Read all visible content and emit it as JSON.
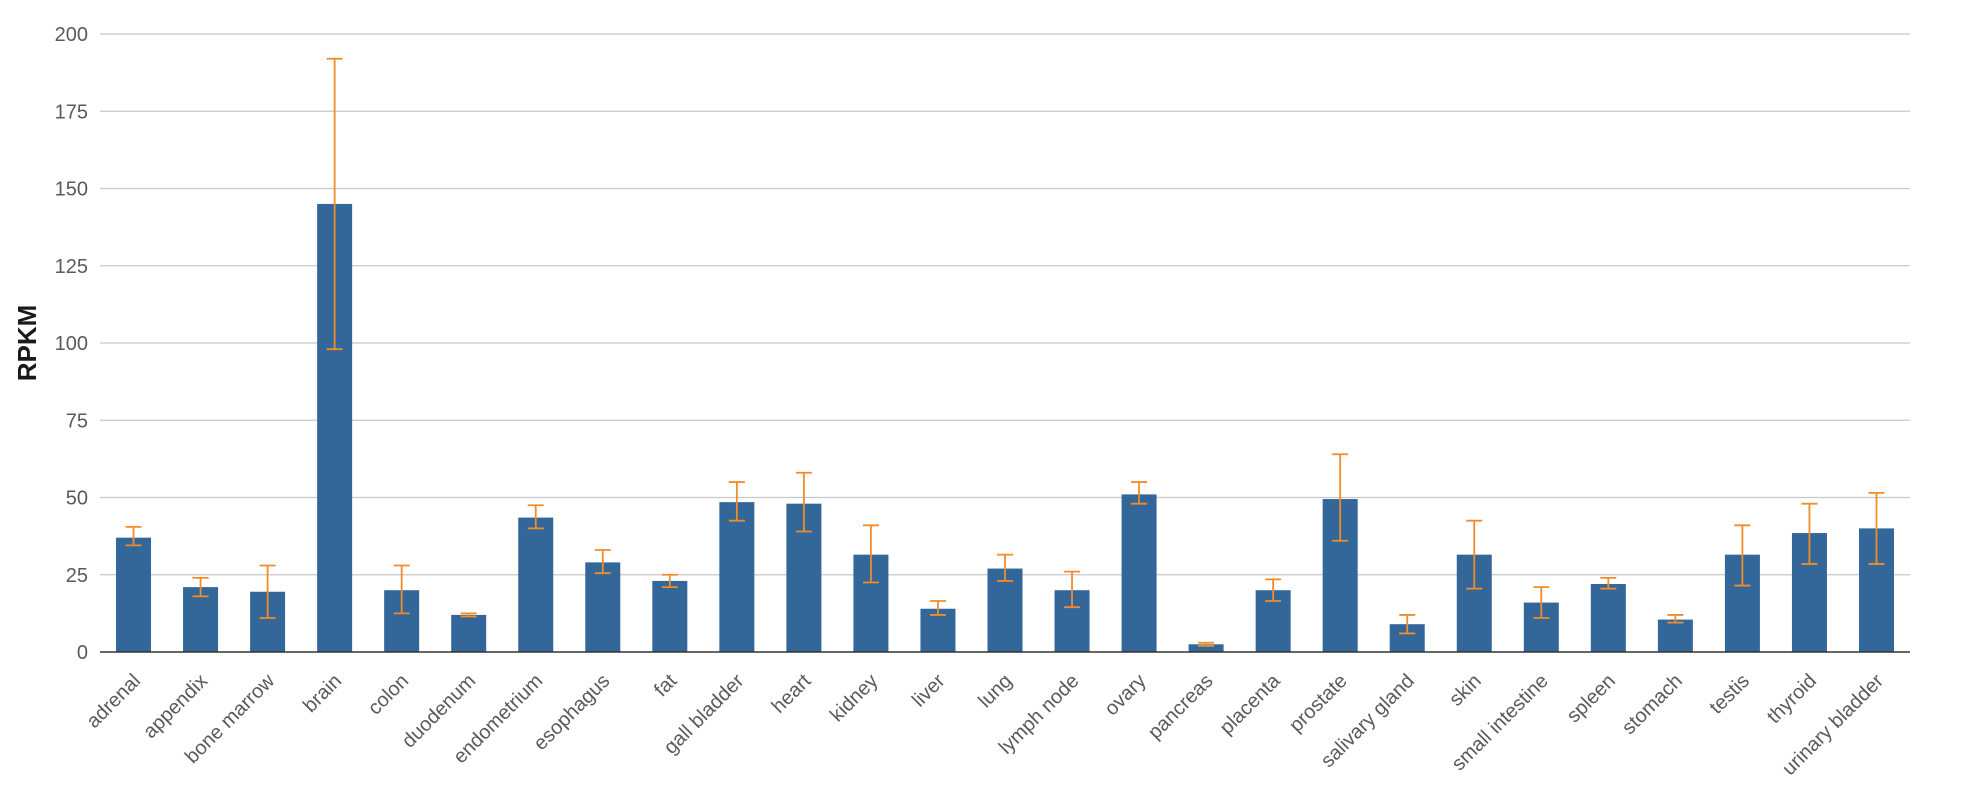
{
  "chart_data": {
    "type": "bar",
    "title": "",
    "xlabel": "",
    "ylabel": "RPKM",
    "ylim": [
      0,
      200
    ],
    "yticks": [
      0,
      25,
      50,
      75,
      100,
      125,
      150,
      175,
      200
    ],
    "grid": true,
    "colors": {
      "bar": "#336699",
      "error": "#f28c28",
      "grid": "#c8c8c8",
      "axis": "#333333"
    },
    "categories": [
      "adrenal",
      "appendix",
      "bone marrow",
      "brain",
      "colon",
      "duodenum",
      "endometrium",
      "esophagus",
      "fat",
      "gall bladder",
      "heart",
      "kidney",
      "liver",
      "lung",
      "lymph node",
      "ovary",
      "pancreas",
      "placenta",
      "prostate",
      "salivary gland",
      "skin",
      "small intestine",
      "spleen",
      "stomach",
      "testis",
      "thyroid",
      "urinary bladder"
    ],
    "series": [
      {
        "values": [
          37,
          21,
          19.5,
          145,
          20,
          12,
          43.5,
          29,
          23,
          48.5,
          48,
          31.5,
          14,
          27,
          20,
          51,
          2.5,
          20,
          49.5,
          9,
          31.5,
          16,
          22,
          10.5,
          31.5,
          38.5,
          40
        ],
        "error_low": [
          34.5,
          18,
          11,
          98,
          12.5,
          11.5,
          40,
          25.5,
          21,
          42.5,
          39,
          22.5,
          12,
          23,
          14.5,
          48,
          2,
          16.5,
          36,
          6,
          20.5,
          11,
          20.5,
          9.5,
          21.5,
          28.5,
          28.5
        ],
        "error_high": [
          40.5,
          24,
          28,
          192,
          28,
          12.5,
          47.5,
          33,
          25,
          55,
          58,
          41,
          16.5,
          31.5,
          26,
          55,
          3,
          23.5,
          64,
          12,
          42.5,
          21,
          24,
          12,
          41,
          48,
          51.5
        ]
      }
    ]
  }
}
